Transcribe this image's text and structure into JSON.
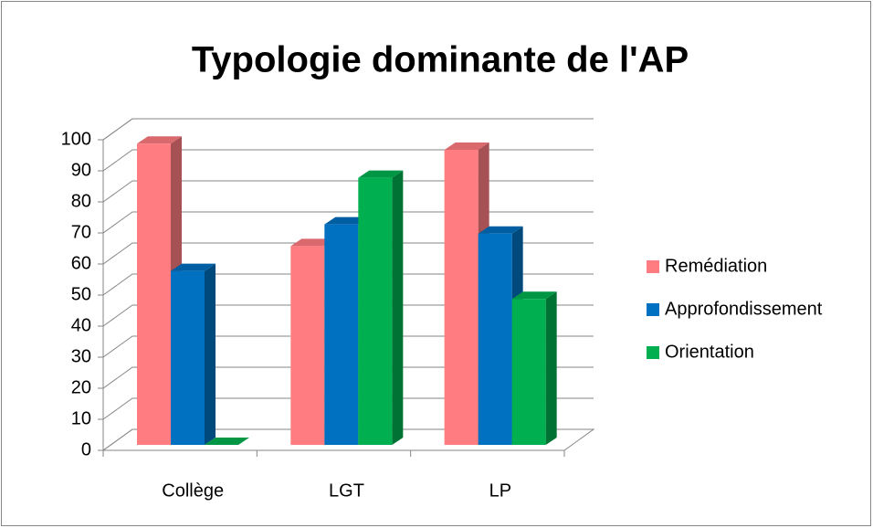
{
  "chart_data": {
    "type": "bar3d",
    "title": "Typologie dominante de l'AP",
    "categories": [
      "Collège",
      "LGT",
      "LP"
    ],
    "series": [
      {
        "name": "Remédiation",
        "color": "#ff7c80",
        "values": [
          97,
          64,
          95
        ]
      },
      {
        "name": "Approfondissement",
        "color": "#0070c0",
        "values": [
          56,
          71,
          68
        ]
      },
      {
        "name": "Orientation",
        "color": "#00b050",
        "values": [
          0,
          86,
          47
        ]
      }
    ],
    "ylim": [
      0,
      100
    ],
    "yticks": [
      0,
      10,
      20,
      30,
      40,
      50,
      60,
      70,
      80,
      90,
      100
    ],
    "grid": true,
    "legend": "right"
  }
}
